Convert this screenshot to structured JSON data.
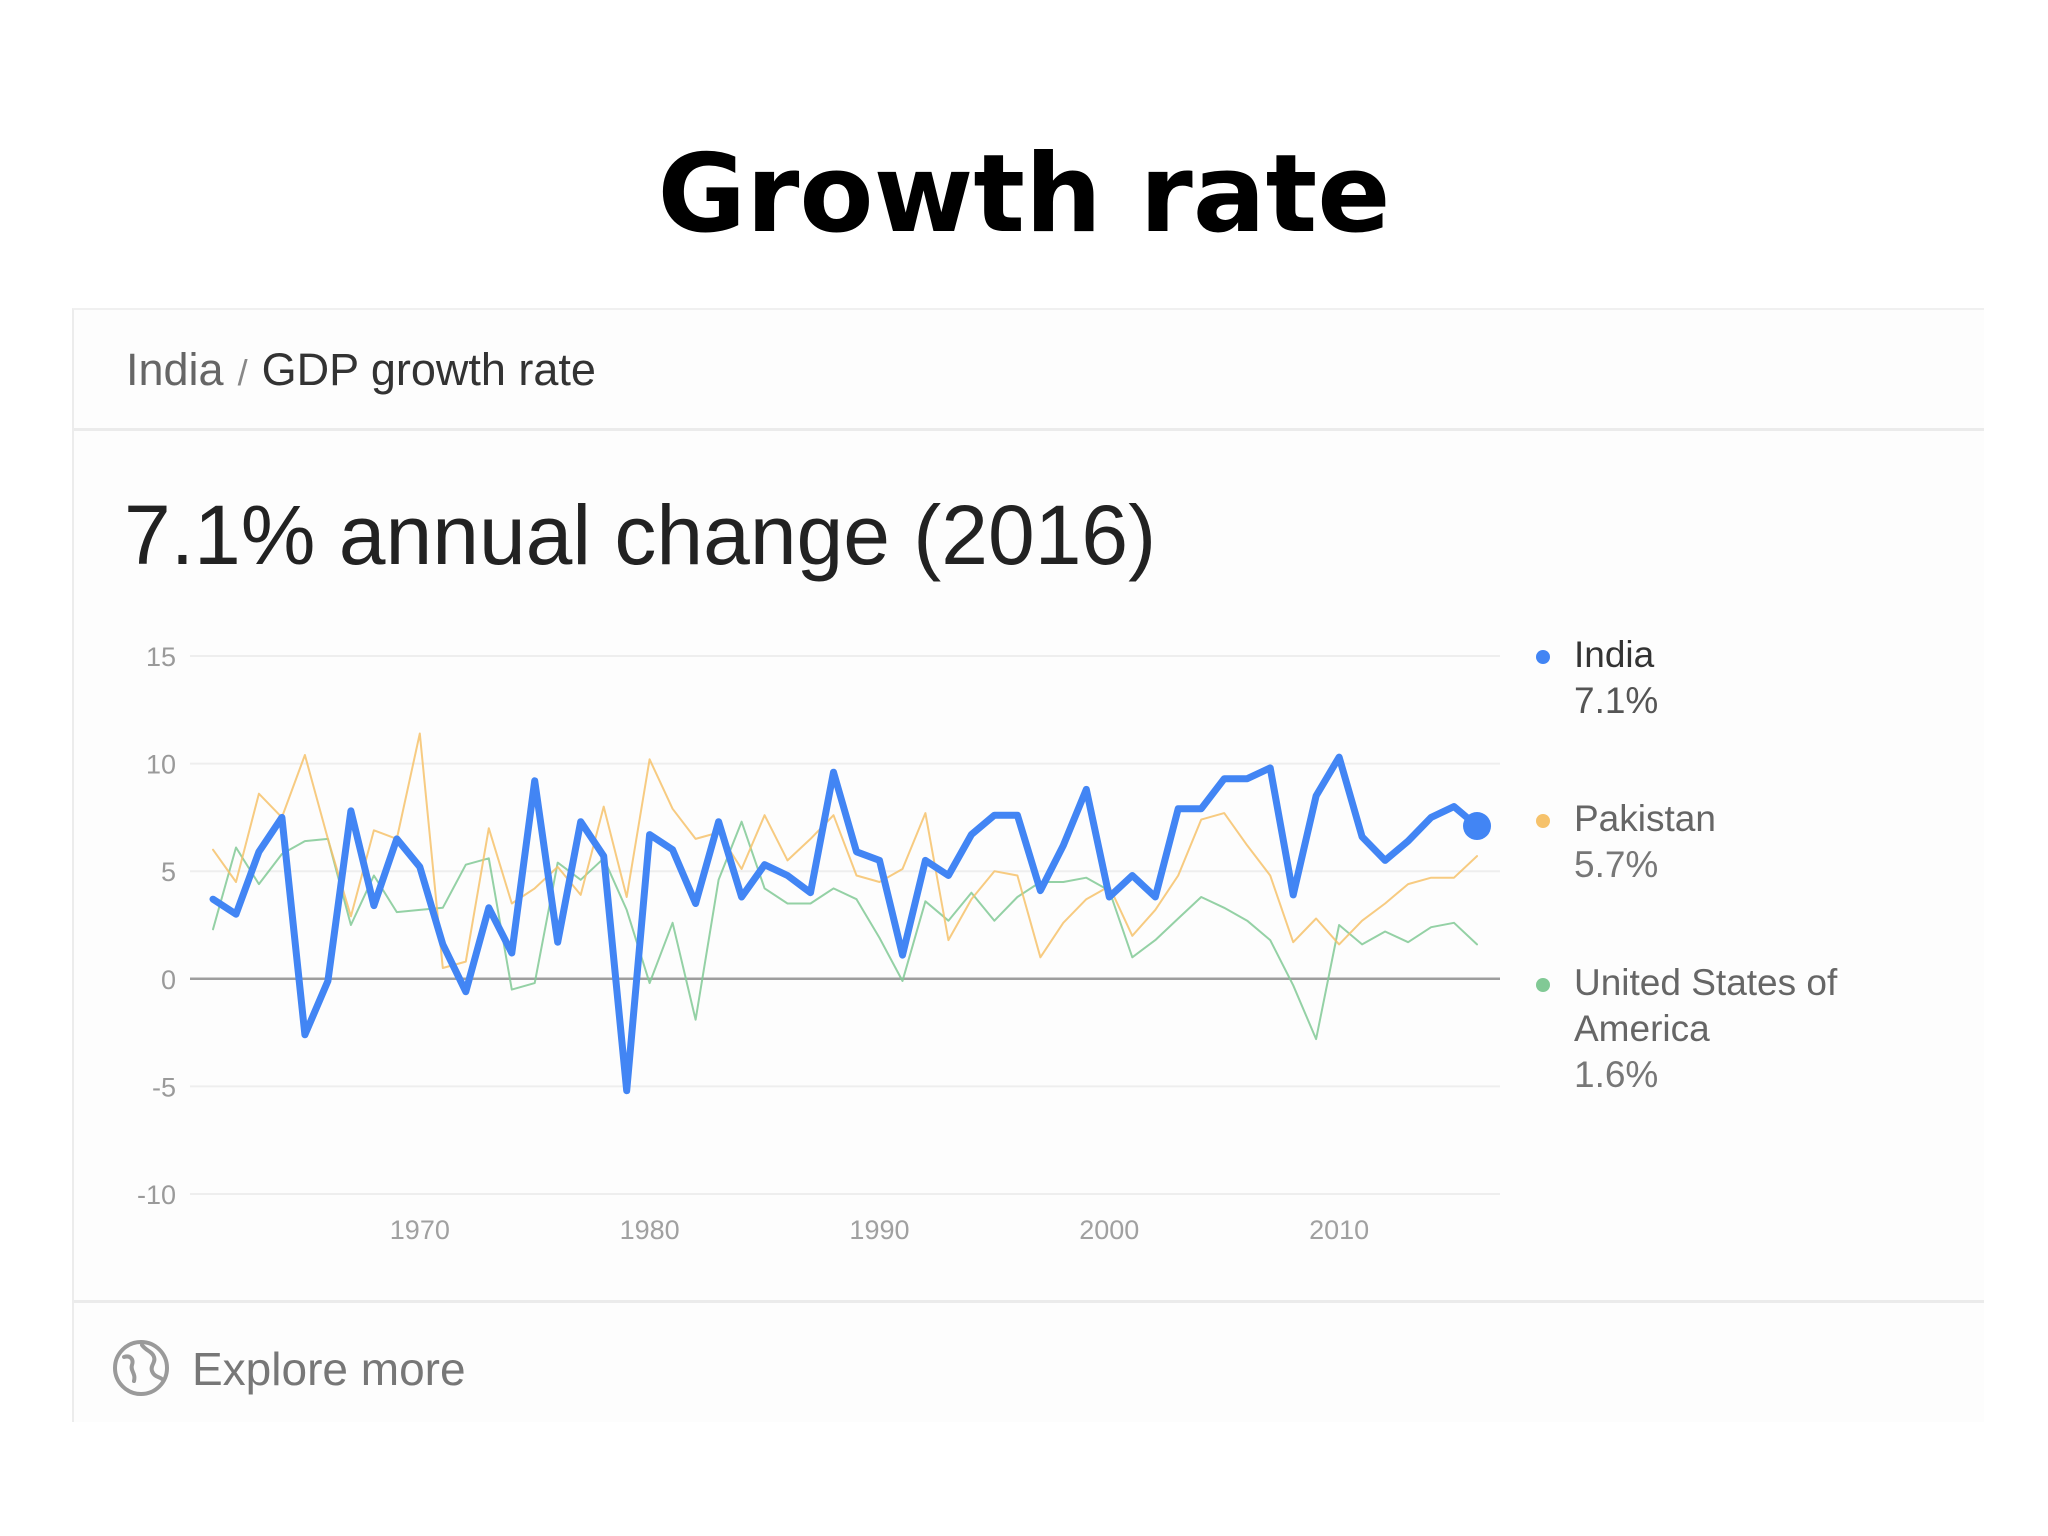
{
  "slide": {
    "title": "Growth rate"
  },
  "card": {
    "breadcrumb": {
      "country": "India",
      "separator": "/",
      "indicator": "GDP growth rate"
    },
    "headline": "7.1% annual change (2016)",
    "legend": [
      {
        "name": "India",
        "value": "7.1%",
        "color": "#4285f4"
      },
      {
        "name": "Pakistan",
        "value": "5.7%",
        "color": "#f6c26b"
      },
      {
        "name": "United States of America",
        "value": "1.6%",
        "color": "#81c995"
      }
    ],
    "footer": {
      "label": "Explore more",
      "icon": "globe-icon"
    }
  },
  "chart_data": {
    "type": "line",
    "title": "",
    "xlabel": "",
    "ylabel": "",
    "xlim": [
      1960,
      2017
    ],
    "ylim": [
      -10,
      15
    ],
    "yticks": [
      15,
      10,
      5,
      0,
      -5,
      -10
    ],
    "xticks": [
      1970,
      1980,
      1990,
      2000,
      2010
    ],
    "grid": true,
    "legend_position": "right",
    "x": [
      1961,
      1962,
      1963,
      1964,
      1965,
      1966,
      1967,
      1968,
      1969,
      1970,
      1971,
      1972,
      1973,
      1974,
      1975,
      1976,
      1977,
      1978,
      1979,
      1980,
      1981,
      1982,
      1983,
      1984,
      1985,
      1986,
      1987,
      1988,
      1989,
      1990,
      1991,
      1992,
      1993,
      1994,
      1995,
      1996,
      1997,
      1998,
      1999,
      2000,
      2001,
      2002,
      2003,
      2004,
      2005,
      2006,
      2007,
      2008,
      2009,
      2010,
      2011,
      2012,
      2013,
      2014,
      2015,
      2016
    ],
    "series": [
      {
        "name": "India",
        "color": "#4285f4",
        "values": [
          3.7,
          3.0,
          5.9,
          7.5,
          -2.6,
          -0.1,
          7.8,
          3.4,
          6.5,
          5.2,
          1.6,
          -0.6,
          3.3,
          1.2,
          9.2,
          1.7,
          7.3,
          5.7,
          -5.2,
          6.7,
          6.0,
          3.5,
          7.3,
          3.8,
          5.3,
          4.8,
          4.0,
          9.6,
          5.9,
          5.5,
          1.1,
          5.5,
          4.8,
          6.7,
          7.6,
          7.6,
          4.1,
          6.2,
          8.8,
          3.8,
          4.8,
          3.8,
          7.9,
          7.9,
          9.3,
          9.3,
          9.8,
          3.9,
          8.5,
          10.3,
          6.6,
          5.5,
          6.4,
          7.5,
          8.0,
          7.1
        ]
      },
      {
        "name": "Pakistan",
        "color": "#f6c26b",
        "values": [
          6.0,
          4.5,
          8.6,
          7.5,
          10.4,
          6.5,
          2.9,
          6.9,
          6.5,
          11.4,
          0.5,
          0.8,
          7.0,
          3.5,
          4.2,
          5.2,
          3.9,
          8.0,
          3.8,
          10.2,
          7.9,
          6.5,
          6.8,
          5.1,
          7.6,
          5.5,
          6.5,
          7.6,
          4.8,
          4.5,
          5.1,
          7.7,
          1.8,
          3.7,
          5.0,
          4.8,
          1.0,
          2.6,
          3.7,
          4.3,
          2.0,
          3.2,
          4.8,
          7.4,
          7.7,
          6.2,
          4.8,
          1.7,
          2.8,
          1.6,
          2.7,
          3.5,
          4.4,
          4.7,
          4.7,
          5.7
        ]
      },
      {
        "name": "United States of America",
        "color": "#81c995",
        "values": [
          2.3,
          6.1,
          4.4,
          5.8,
          6.4,
          6.5,
          2.5,
          4.8,
          3.1,
          3.2,
          3.3,
          5.3,
          5.6,
          -0.5,
          -0.2,
          5.4,
          4.6,
          5.6,
          3.2,
          -0.2,
          2.6,
          -1.9,
          4.6,
          7.3,
          4.2,
          3.5,
          3.5,
          4.2,
          3.7,
          1.9,
          -0.1,
          3.6,
          2.7,
          4.0,
          2.7,
          3.8,
          4.5,
          4.5,
          4.7,
          4.1,
          1.0,
          1.8,
          2.8,
          3.8,
          3.3,
          2.7,
          1.8,
          -0.3,
          -2.8,
          2.5,
          1.6,
          2.2,
          1.7,
          2.4,
          2.6,
          1.6
        ]
      }
    ]
  }
}
